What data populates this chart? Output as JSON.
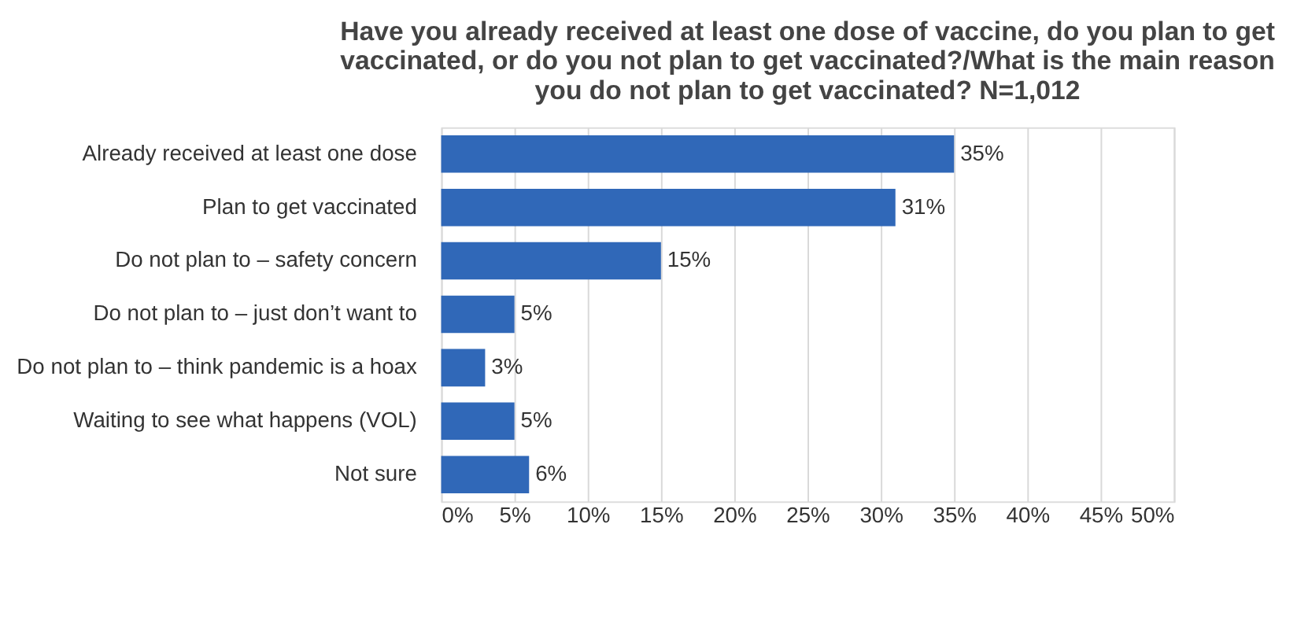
{
  "chart_data": {
    "type": "bar",
    "orientation": "horizontal",
    "title": "Have you already received at least one dose of vaccine, do you plan to get vaccinated, or do you not plan to get vaccinated?/What is the main reason you do not plan to get vaccinated? N=1,012",
    "categories": [
      "Already received at least one dose",
      "Plan to get vaccinated",
      "Do not plan to  – safety concern",
      "Do not plan to – just don’t want to",
      "Do not plan to – think pandemic is a hoax",
      "Waiting to see what happens (VOL)",
      "Not sure"
    ],
    "values": [
      35,
      31,
      15,
      5,
      3,
      5,
      6
    ],
    "value_labels": [
      "35%",
      "31%",
      "15%",
      "5%",
      "3%",
      "5%",
      "6%"
    ],
    "color": "#3068b8",
    "xlim": [
      0,
      50
    ],
    "xticks": [
      {
        "value": 0,
        "label": "0%"
      },
      {
        "value": 5,
        "label": "5%"
      },
      {
        "value": 10,
        "label": "10%"
      },
      {
        "value": 15,
        "label": "15%"
      },
      {
        "value": 20,
        "label": "20%"
      },
      {
        "value": 25,
        "label": "25%"
      },
      {
        "value": 30,
        "label": "30%"
      },
      {
        "value": 35,
        "label": "35%"
      },
      {
        "value": 40,
        "label": "40%"
      },
      {
        "value": 45,
        "label": "45%"
      },
      {
        "value": 50,
        "label": "50%"
      }
    ],
    "grid": "x"
  }
}
